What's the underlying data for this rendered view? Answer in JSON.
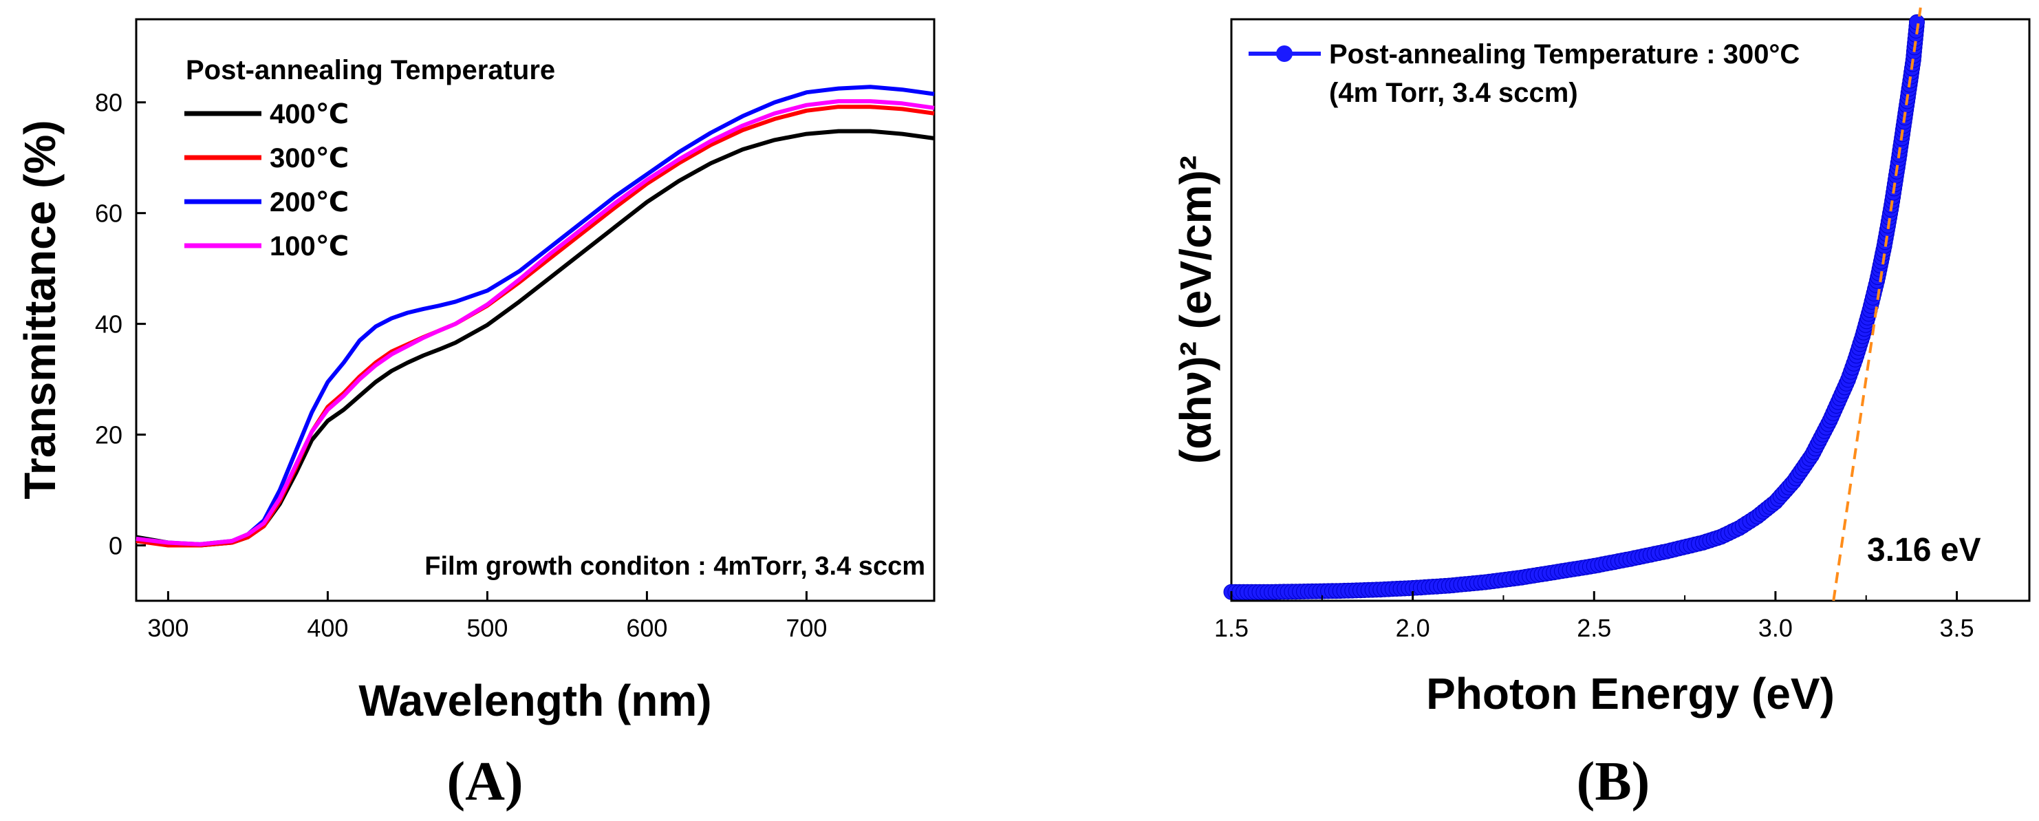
{
  "panels": {
    "a": {
      "label": "(A)"
    },
    "b": {
      "label": "(B)"
    }
  },
  "chart_data": [
    {
      "type": "line",
      "xlabel": "Wavelength (nm)",
      "ylabel": "Transmittance (%)",
      "xlim": [
        280,
        780
      ],
      "ylim": [
        -10,
        95
      ],
      "xticks": [
        300,
        400,
        500,
        600,
        700
      ],
      "yticks": [
        0,
        20,
        40,
        60,
        80
      ],
      "legend_title": "Post-annealing Temperature",
      "legend_position": "top-left",
      "annotation": "Film growth conditon : 4mTorr, 3.4 sccm",
      "x": [
        280,
        300,
        320,
        340,
        350,
        360,
        370,
        380,
        390,
        400,
        410,
        420,
        430,
        440,
        450,
        460,
        470,
        480,
        500,
        520,
        540,
        560,
        580,
        600,
        620,
        640,
        660,
        680,
        700,
        720,
        740,
        760,
        780
      ],
      "series": [
        {
          "name": "400℃",
          "color": "#000000",
          "values": [
            1.5,
            0.5,
            0,
            0.5,
            1.5,
            3.5,
            7.5,
            13,
            19,
            22.5,
            24.5,
            27,
            29.5,
            31.5,
            33,
            34.3,
            35.4,
            36.6,
            39.8,
            44,
            48.5,
            53,
            57.5,
            62,
            65.8,
            69,
            71.5,
            73.2,
            74.3,
            74.8,
            74.8,
            74.3,
            73.5
          ]
        },
        {
          "name": "300℃",
          "color": "#ff0000",
          "values": [
            0.8,
            0,
            0,
            0.5,
            1.5,
            3.5,
            8,
            14,
            20.5,
            25,
            27.5,
            30.5,
            33,
            35,
            36.3,
            37.6,
            38.8,
            40,
            43.3,
            47.5,
            52,
            56.5,
            61,
            65.3,
            69,
            72.3,
            75,
            77,
            78.5,
            79.2,
            79.2,
            78.8,
            78
          ]
        },
        {
          "name": "200℃",
          "color": "#0000ff",
          "values": [
            1.2,
            0.5,
            0.2,
            0.8,
            2,
            4.5,
            10,
            17,
            24,
            29.5,
            33,
            37,
            39.5,
            41,
            42,
            42.7,
            43.3,
            44,
            46,
            49.5,
            54,
            58.5,
            63,
            67,
            71,
            74.5,
            77.5,
            80,
            81.8,
            82.5,
            82.8,
            82.3,
            81.5
          ]
        },
        {
          "name": "100℃",
          "color": "#ff00ff",
          "values": [
            1.2,
            0.5,
            0.2,
            0.8,
            2,
            4,
            8.5,
            14.5,
            20.5,
            24.5,
            27,
            30,
            32.5,
            34.5,
            36,
            37.5,
            38.8,
            40,
            43.5,
            48,
            52.8,
            57.3,
            61.8,
            66,
            69.7,
            73,
            75.8,
            78,
            79.5,
            80.2,
            80.2,
            79.8,
            79
          ]
        }
      ]
    },
    {
      "type": "scatter",
      "xlabel": "Photon Energy (eV)",
      "ylabel": "(αhν)² (eV/cm)²",
      "xlim": [
        1.5,
        3.7
      ],
      "ylim": [
        0,
        100
      ],
      "xticks": [
        "1.5",
        "2.0",
        "2.5",
        "3.0",
        "3.5"
      ],
      "legend_position": "top-left",
      "series": [
        {
          "name": "Post-annealing Temperature : 300°C",
          "subtitle": "(4m Torr, 3.4 sccm)",
          "color": "#1a1aff",
          "x": [
            1.5,
            1.6,
            1.7,
            1.8,
            1.9,
            2.0,
            2.1,
            2.2,
            2.3,
            2.4,
            2.5,
            2.6,
            2.7,
            2.8,
            2.85,
            2.9,
            2.95,
            3.0,
            3.05,
            3.1,
            3.15,
            3.2,
            3.22,
            3.24,
            3.26,
            3.28,
            3.3,
            3.32,
            3.34,
            3.36,
            3.38,
            3.39
          ],
          "values": [
            1.5,
            1.5,
            1.6,
            1.7,
            1.9,
            2.2,
            2.6,
            3.2,
            4,
            5,
            6,
            7.2,
            8.5,
            10,
            11,
            12.5,
            14.5,
            17,
            20.5,
            25,
            31,
            38,
            41.5,
            45.5,
            50,
            55,
            61,
            68,
            76,
            84.5,
            93,
            99.5
          ]
        }
      ],
      "fit_line": {
        "color": "#ff8c1a",
        "x": [
          3.16,
          3.4
        ],
        "values": [
          0,
          102
        ]
      },
      "annotation": "3.16 eV"
    }
  ]
}
